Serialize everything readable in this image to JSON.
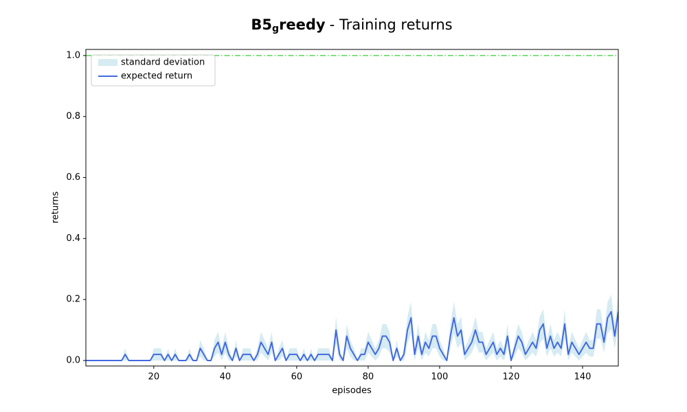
{
  "chart_data": {
    "type": "line",
    "title_parts": [
      "B5",
      "g",
      "reedy",
      "- Training returns"
    ],
    "xlabel": "episodes",
    "ylabel": "returns",
    "x": [
      1,
      2,
      3,
      4,
      5,
      6,
      7,
      8,
      9,
      10,
      11,
      12,
      13,
      14,
      15,
      16,
      17,
      18,
      19,
      20,
      21,
      22,
      23,
      24,
      25,
      26,
      27,
      28,
      29,
      30,
      31,
      32,
      33,
      34,
      35,
      36,
      37,
      38,
      39,
      40,
      41,
      42,
      43,
      44,
      45,
      46,
      47,
      48,
      49,
      50,
      51,
      52,
      53,
      54,
      55,
      56,
      57,
      58,
      59,
      60,
      61,
      62,
      63,
      64,
      65,
      66,
      67,
      68,
      69,
      70,
      71,
      72,
      73,
      74,
      75,
      76,
      77,
      78,
      79,
      80,
      81,
      82,
      83,
      84,
      85,
      86,
      87,
      88,
      89,
      90,
      91,
      92,
      93,
      94,
      95,
      96,
      97,
      98,
      99,
      100,
      101,
      102,
      103,
      104,
      105,
      106,
      107,
      108,
      109,
      110,
      111,
      112,
      113,
      114,
      115,
      116,
      117,
      118,
      119,
      120,
      121,
      122,
      123,
      124,
      125,
      126,
      127,
      128,
      129,
      130,
      131,
      132,
      133,
      134,
      135,
      136,
      137,
      138,
      139,
      140,
      141,
      142,
      143,
      144,
      145,
      146,
      147,
      148,
      149,
      150
    ],
    "series": [
      {
        "name": "expected return",
        "color": "#4169e1",
        "values": [
          0,
          0,
          0,
          0,
          0,
          0,
          0,
          0,
          0,
          0,
          0,
          0.02,
          0,
          0,
          0,
          0,
          0,
          0,
          0,
          0.02,
          0.02,
          0.02,
          0,
          0.02,
          0,
          0.02,
          0,
          0,
          0,
          0.02,
          0,
          0,
          0.04,
          0.02,
          0,
          0,
          0.04,
          0.06,
          0.02,
          0.06,
          0.02,
          0,
          0.04,
          0,
          0.02,
          0.02,
          0.02,
          0,
          0.02,
          0.06,
          0.04,
          0.02,
          0.06,
          0,
          0.02,
          0.04,
          0,
          0.02,
          0.02,
          0.02,
          0,
          0.02,
          0,
          0.02,
          0,
          0.02,
          0.02,
          0.02,
          0.02,
          0,
          0.1,
          0.02,
          0,
          0.08,
          0.04,
          0.02,
          0,
          0.02,
          0.02,
          0.06,
          0.04,
          0.02,
          0.04,
          0.08,
          0.08,
          0.06,
          0,
          0.04,
          0,
          0.02,
          0.1,
          0.14,
          0.02,
          0.08,
          0.02,
          0.06,
          0.04,
          0.08,
          0.08,
          0.04,
          0.02,
          0,
          0.08,
          0.14,
          0.08,
          0.1,
          0.02,
          0.04,
          0.06,
          0.1,
          0.06,
          0.06,
          0.02,
          0.04,
          0.06,
          0.02,
          0.04,
          0.02,
          0.08,
          0,
          0.04,
          0.08,
          0.06,
          0.02,
          0.04,
          0.06,
          0.04,
          0.1,
          0.12,
          0.04,
          0.08,
          0.04,
          0.06,
          0.04,
          0.12,
          0.02,
          0.06,
          0.04,
          0.02,
          0.04,
          0.06,
          0.04,
          0.04,
          0.12,
          0.12,
          0.06,
          0.14,
          0.16,
          0.08,
          0.16
        ]
      }
    ],
    "band": {
      "name": "standard deviation",
      "color": "#add8e6",
      "values": [
        0,
        0,
        0,
        0,
        0,
        0,
        0,
        0,
        0,
        0,
        0,
        0.02,
        0,
        0,
        0,
        0,
        0,
        0,
        0,
        0.02,
        0.02,
        0.02,
        0,
        0.02,
        0,
        0.02,
        0,
        0,
        0,
        0.02,
        0,
        0,
        0.027,
        0.02,
        0,
        0,
        0.027,
        0.034,
        0.02,
        0.034,
        0.02,
        0,
        0.027,
        0,
        0.02,
        0.02,
        0.02,
        0,
        0.02,
        0.034,
        0.027,
        0.02,
        0.034,
        0,
        0.02,
        0.027,
        0,
        0.02,
        0.02,
        0.02,
        0,
        0.02,
        0,
        0.02,
        0,
        0.02,
        0.02,
        0.02,
        0.02,
        0,
        0.044,
        0.02,
        0,
        0.04,
        0.027,
        0.02,
        0,
        0.02,
        0.02,
        0.034,
        0.027,
        0.02,
        0.027,
        0.04,
        0.04,
        0.034,
        0,
        0.027,
        0,
        0.02,
        0.044,
        0.052,
        0.02,
        0.04,
        0.02,
        0.034,
        0.027,
        0.04,
        0.04,
        0.027,
        0.02,
        0,
        0.04,
        0.052,
        0.04,
        0.044,
        0.02,
        0.027,
        0.034,
        0.044,
        0.034,
        0.034,
        0.02,
        0.027,
        0.034,
        0.02,
        0.027,
        0.02,
        0.04,
        0,
        0.027,
        0.04,
        0.034,
        0.02,
        0.027,
        0.034,
        0.027,
        0.044,
        0.048,
        0.027,
        0.04,
        0.027,
        0.034,
        0.027,
        0.048,
        0.02,
        0.034,
        0.027,
        0.02,
        0.027,
        0.034,
        0.027,
        0.027,
        0.048,
        0.048,
        0.034,
        0.052,
        0.056,
        0.04,
        0.056
      ]
    },
    "reference_line": {
      "value": 1,
      "color": "#32cd32"
    },
    "xlim": [
      1,
      150
    ],
    "xticks": [
      20,
      40,
      60,
      80,
      100,
      120,
      140
    ],
    "ylim": [
      -0.018,
      1.02
    ],
    "yticks": [
      {
        "value": 0,
        "label": "0.0"
      },
      0.2,
      0.4,
      0.6,
      0.8,
      {
        "value": 1,
        "label": "1.0"
      }
    ],
    "legend": "upper left"
  }
}
